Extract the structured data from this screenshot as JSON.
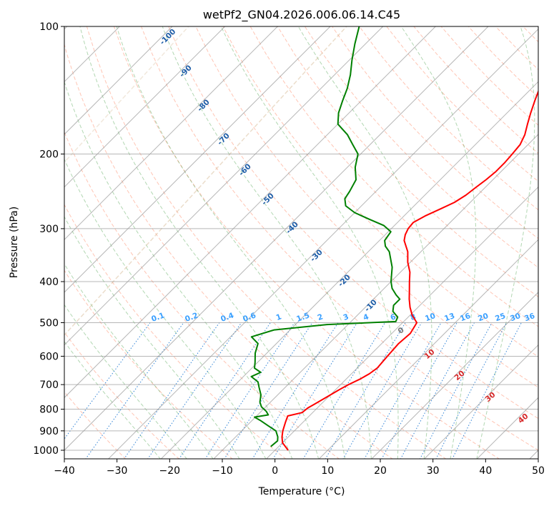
{
  "chart_data": {
    "type": "skew-t",
    "title": "wetPf2_GN04.2026.006.06.14.C45",
    "xlabel": "Temperature (°C)",
    "ylabel": "Pressure (hPa)",
    "xlim": [
      -40,
      50
    ],
    "ylim": [
      1050,
      100
    ],
    "y_scale": "log",
    "x_ticks": [
      "−40",
      "−30",
      "−20",
      "−10",
      "0",
      "10",
      "20",
      "30",
      "40",
      "50"
    ],
    "y_ticks": [
      "1000",
      "900",
      "800",
      "700",
      "600",
      "500",
      "400",
      "300",
      "200",
      "100"
    ],
    "grid": true,
    "series": [
      {
        "role": "temperature",
        "color": "#ff0000",
        "points": [
          [
            1000,
            2.5
          ],
          [
            960,
            0
          ],
          [
            930,
            -1.2
          ],
          [
            900,
            -2.2
          ],
          [
            860,
            -3.3
          ],
          [
            830,
            -4.1
          ],
          [
            815,
            -2
          ],
          [
            795,
            -1.8
          ],
          [
            780,
            -1.3
          ],
          [
            750,
            -0.3
          ],
          [
            720,
            0.7
          ],
          [
            700,
            1.5
          ],
          [
            680,
            2.6
          ],
          [
            660,
            3.4
          ],
          [
            640,
            3.8
          ],
          [
            600,
            3.5
          ],
          [
            560,
            3.2
          ],
          [
            530,
            3.5
          ],
          [
            500,
            2.7
          ],
          [
            480,
            0.4
          ],
          [
            460,
            -1.5
          ],
          [
            440,
            -3.2
          ],
          [
            420,
            -4.8
          ],
          [
            400,
            -6.5
          ],
          [
            380,
            -8.2
          ],
          [
            360,
            -10.5
          ],
          [
            340,
            -12.5
          ],
          [
            320,
            -15.3
          ],
          [
            310,
            -16.2
          ],
          [
            300,
            -16.8
          ],
          [
            290,
            -17
          ],
          [
            280,
            -16
          ],
          [
            270,
            -14.5
          ],
          [
            260,
            -13
          ],
          [
            250,
            -12.2
          ],
          [
            240,
            -11.8
          ],
          [
            230,
            -11.3
          ],
          [
            220,
            -11
          ],
          [
            210,
            -11
          ],
          [
            200,
            -11.2
          ],
          [
            190,
            -11.5
          ],
          [
            180,
            -12.5
          ],
          [
            170,
            -14
          ],
          [
            160,
            -15.5
          ],
          [
            150,
            -17
          ],
          [
            140,
            -18.5
          ],
          [
            130,
            -20.5
          ],
          [
            120,
            -23
          ],
          [
            115,
            -25
          ],
          [
            110,
            -25.5
          ],
          [
            100,
            -25.5
          ]
        ]
      },
      {
        "role": "dewpoint",
        "color": "#008000",
        "points": [
          [
            980,
            -1.5
          ],
          [
            950,
            -1.3
          ],
          [
            930,
            -2
          ],
          [
            900,
            -3.5
          ],
          [
            875,
            -6
          ],
          [
            850,
            -8.5
          ],
          [
            835,
            -10.2
          ],
          [
            825,
            -8
          ],
          [
            810,
            -9
          ],
          [
            790,
            -10.8
          ],
          [
            770,
            -12
          ],
          [
            740,
            -13.2
          ],
          [
            710,
            -15
          ],
          [
            690,
            -16.2
          ],
          [
            670,
            -18.5
          ],
          [
            655,
            -17.5
          ],
          [
            640,
            -19.5
          ],
          [
            620,
            -20.5
          ],
          [
            590,
            -22.2
          ],
          [
            560,
            -23.5
          ],
          [
            540,
            -26
          ],
          [
            520,
            -23
          ],
          [
            505,
            -14
          ],
          [
            497,
            -1.5
          ],
          [
            485,
            -2
          ],
          [
            470,
            -4
          ],
          [
            455,
            -5
          ],
          [
            440,
            -5
          ],
          [
            430,
            -6.5
          ],
          [
            415,
            -8.5
          ],
          [
            400,
            -10
          ],
          [
            370,
            -12.5
          ],
          [
            340,
            -16
          ],
          [
            330,
            -17.8
          ],
          [
            320,
            -19
          ],
          [
            305,
            -19.5
          ],
          [
            295,
            -22
          ],
          [
            285,
            -26
          ],
          [
            275,
            -30
          ],
          [
            265,
            -33
          ],
          [
            255,
            -34.5
          ],
          [
            245,
            -35
          ],
          [
            230,
            -36
          ],
          [
            215,
            -38.5
          ],
          [
            200,
            -40.5
          ],
          [
            190,
            -43.3
          ],
          [
            180,
            -46.2
          ],
          [
            170,
            -50
          ],
          [
            160,
            -52
          ],
          [
            150,
            -53.5
          ],
          [
            140,
            -55
          ],
          [
            130,
            -57
          ],
          [
            120,
            -59.5
          ],
          [
            110,
            -62
          ],
          [
            100,
            -64.5
          ]
        ]
      }
    ],
    "reference_lines": {
      "dry_adiabats_color": "#ff8c69",
      "moist_adiabats_color": "#228b22",
      "mixing_ratio_color": "#1e78d2",
      "isotherm_color": "#999999",
      "hodograph_arc_color": "#d2b48c"
    },
    "annotations": {
      "isotherm_labels": [
        "-100",
        "-90",
        "-80",
        "-70",
        "-60",
        "-50",
        "-40",
        "-30",
        "-20",
        "-10"
      ],
      "mixing_ratio_labels": [
        "0.1",
        "0.2",
        "0.4",
        "0.6",
        "1",
        "1.5",
        "2",
        "3",
        "4",
        "6",
        "8",
        "10",
        "13",
        "16",
        "20",
        "25",
        "30",
        "36"
      ],
      "warm_isotherm_labels": [
        "0",
        "10",
        "20",
        "30",
        "40"
      ]
    }
  }
}
